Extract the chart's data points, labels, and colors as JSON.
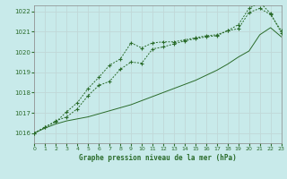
{
  "title": "Graphe pression niveau de la mer (hPa)",
  "bg_color": "#c8eaea",
  "grid_color": "#b0d0d0",
  "line_color": "#2a6b2a",
  "xlim": [
    0,
    23
  ],
  "ylim": [
    1015.5,
    1022.3
  ],
  "yticks": [
    1016,
    1017,
    1018,
    1019,
    1020,
    1021,
    1022
  ],
  "xticks": [
    0,
    1,
    2,
    3,
    4,
    5,
    6,
    7,
    8,
    9,
    10,
    11,
    12,
    13,
    14,
    15,
    16,
    17,
    18,
    19,
    20,
    21,
    22,
    23
  ],
  "series1": [
    1016.0,
    1016.3,
    1016.6,
    1016.8,
    1017.2,
    1017.85,
    1018.35,
    1018.55,
    1019.15,
    1019.5,
    1019.45,
    1020.15,
    1020.25,
    1020.4,
    1020.55,
    1020.65,
    1020.75,
    1020.8,
    1021.05,
    1021.15,
    1021.95,
    1022.15,
    1021.85,
    1021.05
  ],
  "series2": [
    1016.0,
    1016.3,
    1016.55,
    1017.05,
    1017.5,
    1018.2,
    1018.75,
    1019.35,
    1019.65,
    1020.45,
    1020.2,
    1020.45,
    1020.5,
    1020.5,
    1020.6,
    1020.7,
    1020.8,
    1020.85,
    1021.05,
    1021.35,
    1022.15,
    1022.45,
    1021.9,
    1020.95
  ],
  "series3": [
    1016.0,
    1016.25,
    1016.45,
    1016.6,
    1016.7,
    1016.8,
    1016.95,
    1017.1,
    1017.25,
    1017.4,
    1017.6,
    1017.8,
    1018.0,
    1018.2,
    1018.4,
    1018.6,
    1018.85,
    1019.1,
    1019.4,
    1019.75,
    1020.05,
    1020.85,
    1021.2,
    1020.75
  ]
}
